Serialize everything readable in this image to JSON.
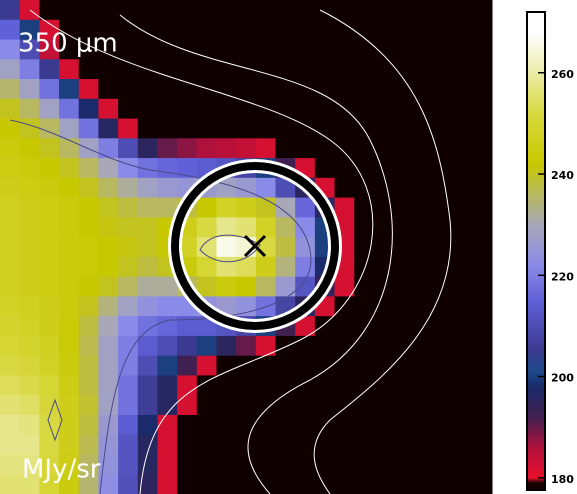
{
  "chart_data": {
    "type": "heatmap",
    "annotations": [
      "350 μm",
      "MJy/sr"
    ],
    "ylim": [
      177.6,
      272
    ],
    "yticks": [
      180,
      200,
      220,
      240,
      260
    ],
    "colorscale": [
      [
        170,
        "#100000"
      ],
      [
        179,
        "#1a0000"
      ],
      [
        180,
        "#e8102a"
      ],
      [
        186,
        "#b0103c"
      ],
      [
        192,
        "#402050"
      ],
      [
        198,
        "#1a2a6a"
      ],
      [
        201,
        "#1c4a8a"
      ],
      [
        205,
        "#3a3a90"
      ],
      [
        215,
        "#6060d8"
      ],
      [
        222,
        "#8a8ae8"
      ],
      [
        230,
        "#a8a8b8"
      ],
      [
        236,
        "#b8b860"
      ],
      [
        242,
        "#c8c800"
      ],
      [
        252,
        "#d8d840"
      ],
      [
        262,
        "#f0f0c0"
      ],
      [
        268,
        "#ffffff"
      ]
    ],
    "z": [
      [
        205,
        182,
        170,
        170,
        170,
        170,
        170,
        170,
        170,
        170,
        170,
        170,
        170,
        170,
        170,
        170,
        170,
        170,
        170,
        170,
        170,
        170,
        170,
        170,
        170
      ],
      [
        215,
        200,
        182,
        170,
        170,
        170,
        170,
        170,
        170,
        170,
        170,
        170,
        170,
        170,
        170,
        170,
        170,
        170,
        170,
        170,
        170,
        170,
        170,
        170,
        170
      ],
      [
        222,
        210,
        184,
        170,
        170,
        170,
        170,
        170,
        170,
        170,
        170,
        170,
        170,
        170,
        170,
        170,
        170,
        170,
        170,
        170,
        170,
        170,
        170,
        170,
        170
      ],
      [
        228,
        220,
        205,
        182,
        170,
        170,
        170,
        170,
        170,
        170,
        170,
        170,
        170,
        170,
        170,
        170,
        170,
        170,
        170,
        170,
        170,
        170,
        170,
        170,
        170
      ],
      [
        235,
        228,
        218,
        200,
        182,
        170,
        170,
        170,
        170,
        170,
        170,
        170,
        170,
        170,
        170,
        170,
        170,
        170,
        170,
        170,
        170,
        170,
        170,
        170,
        170
      ],
      [
        240,
        236,
        228,
        218,
        198,
        182,
        170,
        170,
        170,
        170,
        170,
        170,
        170,
        170,
        170,
        170,
        170,
        170,
        170,
        170,
        170,
        170,
        170,
        170,
        170
      ],
      [
        242,
        240,
        236,
        228,
        218,
        196,
        182,
        170,
        170,
        170,
        170,
        170,
        170,
        170,
        170,
        170,
        170,
        170,
        170,
        170,
        170,
        170,
        170,
        170,
        170
      ],
      [
        244,
        242,
        240,
        236,
        228,
        220,
        210,
        195,
        190,
        188,
        186,
        185,
        184,
        182,
        170,
        170,
        170,
        170,
        170,
        170,
        170,
        170,
        170,
        170,
        170
      ],
      [
        245,
        244,
        242,
        240,
        236,
        230,
        222,
        218,
        216,
        215,
        214,
        212,
        208,
        200,
        192,
        182,
        170,
        170,
        170,
        170,
        170,
        170,
        170,
        170,
        170
      ],
      [
        246,
        245,
        244,
        242,
        240,
        236,
        232,
        228,
        226,
        225,
        226,
        228,
        226,
        222,
        210,
        195,
        182,
        170,
        170,
        170,
        170,
        170,
        170,
        170,
        170
      ],
      [
        247,
        246,
        245,
        244,
        242,
        240,
        238,
        236,
        236,
        238,
        242,
        248,
        246,
        240,
        230,
        216,
        196,
        182,
        170,
        170,
        170,
        170,
        170,
        170,
        170
      ],
      [
        247,
        246,
        245,
        244,
        242,
        241,
        240,
        240,
        242,
        246,
        252,
        258,
        256,
        248,
        236,
        222,
        200,
        182,
        170,
        170,
        170,
        170,
        170,
        170,
        170
      ],
      [
        247,
        246,
        245,
        244,
        243,
        242,
        241,
        240,
        242,
        248,
        256,
        266,
        264,
        252,
        238,
        224,
        200,
        182,
        170,
        170,
        170,
        170,
        170,
        170,
        170
      ],
      [
        247,
        246,
        245,
        244,
        243,
        242,
        240,
        238,
        240,
        244,
        250,
        256,
        254,
        246,
        234,
        220,
        198,
        182,
        170,
        170,
        170,
        170,
        170,
        170,
        170
      ],
      [
        247,
        246,
        245,
        244,
        242,
        240,
        236,
        232,
        232,
        236,
        240,
        244,
        242,
        236,
        226,
        212,
        194,
        182,
        170,
        170,
        170,
        170,
        170,
        170,
        170
      ],
      [
        248,
        247,
        246,
        244,
        240,
        234,
        228,
        224,
        222,
        222,
        224,
        226,
        224,
        218,
        208,
        195,
        182,
        170,
        170,
        170,
        170,
        170,
        170,
        170,
        170
      ],
      [
        249,
        248,
        246,
        243,
        238,
        230,
        222,
        218,
        216,
        214,
        214,
        212,
        208,
        200,
        192,
        182,
        170,
        170,
        170,
        170,
        170,
        170,
        170,
        170,
        170
      ],
      [
        250,
        249,
        247,
        243,
        237,
        228,
        220,
        214,
        210,
        205,
        200,
        195,
        190,
        182,
        170,
        170,
        170,
        170,
        170,
        170,
        170,
        170,
        170,
        170,
        170
      ],
      [
        252,
        251,
        248,
        244,
        238,
        228,
        220,
        210,
        200,
        192,
        182,
        170,
        170,
        170,
        170,
        170,
        170,
        170,
        170,
        170,
        170,
        170,
        170,
        170,
        170
      ],
      [
        254,
        253,
        250,
        245,
        238,
        228,
        218,
        206,
        196,
        182,
        170,
        170,
        170,
        170,
        170,
        170,
        170,
        170,
        170,
        170,
        170,
        170,
        170,
        170,
        170
      ],
      [
        256,
        255,
        251,
        246,
        239,
        228,
        218,
        206,
        196,
        182,
        170,
        170,
        170,
        170,
        170,
        170,
        170,
        170,
        170,
        170,
        170,
        170,
        170,
        170,
        170
      ],
      [
        258,
        257,
        252,
        246,
        238,
        226,
        214,
        198,
        182,
        170,
        170,
        170,
        170,
        170,
        170,
        170,
        170,
        170,
        170,
        170,
        170,
        170,
        170,
        170,
        170
      ],
      [
        258,
        258,
        252,
        246,
        237,
        225,
        212,
        196,
        182,
        170,
        170,
        170,
        170,
        170,
        170,
        170,
        170,
        170,
        170,
        170,
        170,
        170,
        170,
        170,
        170
      ],
      [
        257,
        257,
        251,
        245,
        236,
        224,
        212,
        196,
        182,
        170,
        170,
        170,
        170,
        170,
        170,
        170,
        170,
        170,
        170,
        170,
        170,
        170,
        170,
        170,
        170
      ],
      [
        256,
        256,
        250,
        244,
        235,
        223,
        211,
        195,
        182,
        170,
        170,
        170,
        170,
        170,
        170,
        170,
        170,
        170,
        170,
        170,
        170,
        170,
        170,
        170,
        170
      ]
    ]
  }
}
